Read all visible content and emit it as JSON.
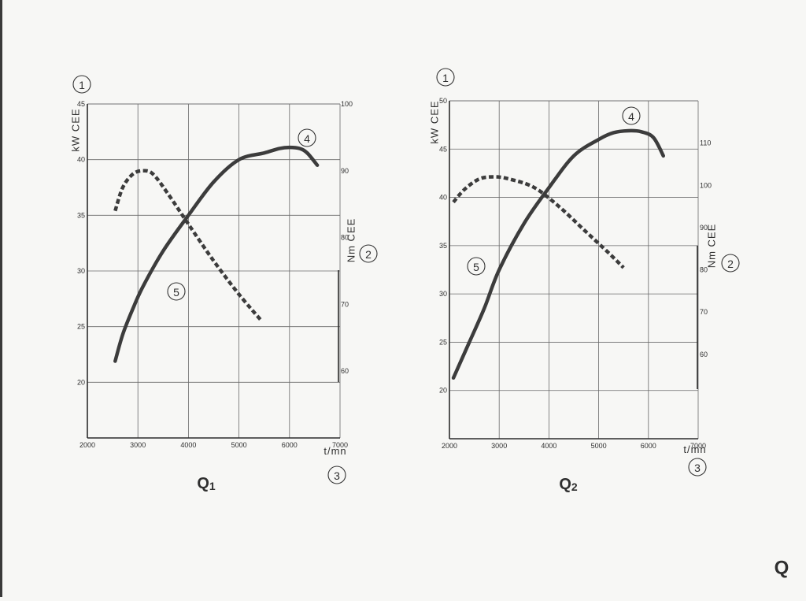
{
  "corner_mark": "Q",
  "chart_data": [
    {
      "type": "line",
      "caption": "Q",
      "caption_sub": "1",
      "xlabel": "t/mn",
      "ylabel": "kW CEE",
      "y2label": "Nm CEE",
      "markers": {
        "y_axis": "1",
        "y2_axis": "2",
        "x_axis": "3",
        "power_curve": "4",
        "torque_curve": "5"
      },
      "xlim": [
        2000,
        7000
      ],
      "xticks": [
        "2000",
        "3000",
        "4000",
        "5000",
        "6000",
        "7000"
      ],
      "ylim": [
        15,
        45
      ],
      "yticks": [
        "20",
        "25",
        "30",
        "35",
        "40",
        "45"
      ],
      "y2lim": [
        50,
        100
      ],
      "y2ticks": [
        "60",
        "70",
        "80",
        "90",
        "100"
      ],
      "grid": true,
      "series": [
        {
          "axis": "y",
          "style": "solid",
          "x": [
            2550,
            2700,
            2900,
            3100,
            3500,
            4000,
            4500,
            5000,
            5500,
            5800,
            6000,
            6200,
            6350,
            6550
          ],
          "y": [
            21.9,
            24.3,
            26.6,
            28.6,
            31.8,
            35.0,
            38.0,
            40.0,
            40.6,
            41.0,
            41.1,
            41.0,
            40.6,
            39.5
          ]
        },
        {
          "axis": "y2",
          "style": "dashed",
          "x": [
            2550,
            2700,
            2900,
            3100,
            3300,
            3600,
            4000,
            4500,
            5000,
            5450
          ],
          "y": [
            84,
            87.5,
            89.5,
            90,
            89.5,
            86.5,
            82,
            76.5,
            71.5,
            67.5
          ]
        }
      ]
    },
    {
      "type": "line",
      "caption": "Q",
      "caption_sub": "2",
      "xlabel": "t/mn",
      "ylabel": "kW CEE",
      "y2label": "Nm CEE",
      "markers": {
        "y_axis": "1",
        "y2_axis": "2",
        "x_axis": "3",
        "power_curve": "4",
        "torque_curve": "5"
      },
      "xlim": [
        2000,
        7000
      ],
      "xticks": [
        "2000",
        "3000",
        "4000",
        "5000",
        "6000",
        "7000"
      ],
      "ylim": [
        15,
        50
      ],
      "yticks": [
        "20",
        "25",
        "30",
        "35",
        "40",
        "45",
        "50"
      ],
      "y2lim": [
        40,
        120
      ],
      "y2ticks": [
        "60",
        "70",
        "80",
        "90",
        "100",
        "110"
      ],
      "grid": true,
      "series": [
        {
          "axis": "y",
          "style": "solid",
          "x": [
            2080,
            2400,
            2700,
            3000,
            3500,
            4000,
            4500,
            5000,
            5300,
            5600,
            5850,
            6100,
            6300
          ],
          "y": [
            21.3,
            25.0,
            28.5,
            32.5,
            37.3,
            41.0,
            44.3,
            46.0,
            46.7,
            46.9,
            46.8,
            46.2,
            44.3
          ]
        },
        {
          "axis": "y2",
          "style": "dashed",
          "x": [
            2080,
            2300,
            2600,
            2900,
            3200,
            3700,
            4200,
            4700,
            5200,
            5500
          ],
          "y": [
            96,
            99,
            101.5,
            102,
            101.5,
            99.5,
            95,
            89.5,
            84,
            80.5
          ]
        }
      ]
    }
  ]
}
